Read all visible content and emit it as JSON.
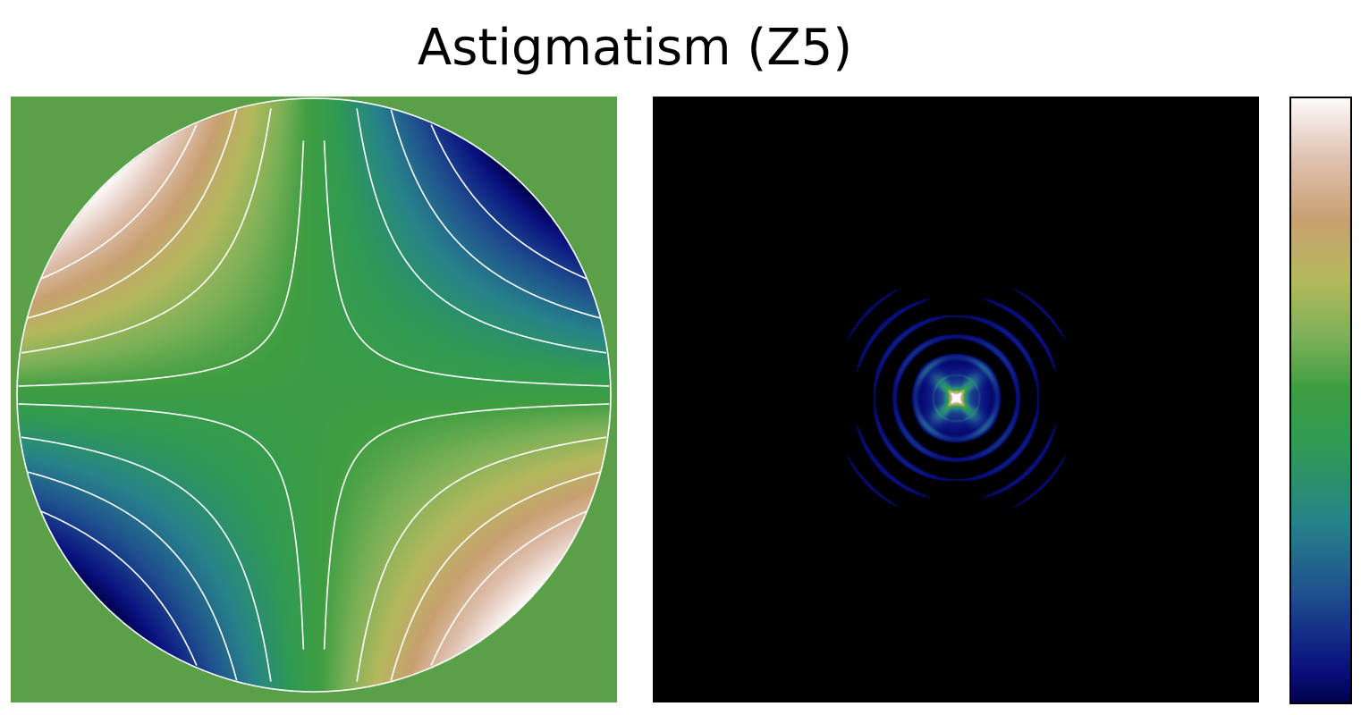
{
  "figure": {
    "title": "Astigmatism (Z5)"
  },
  "colormap": {
    "name": "gist_earth",
    "stops": [
      {
        "t": 0.0,
        "color": "#00004a"
      },
      {
        "t": 0.06,
        "color": "#0a1280"
      },
      {
        "t": 0.18,
        "color": "#1f4f8e"
      },
      {
        "t": 0.3,
        "color": "#27838a"
      },
      {
        "t": 0.42,
        "color": "#2e9a55"
      },
      {
        "t": 0.52,
        "color": "#3f9d41"
      },
      {
        "t": 0.6,
        "color": "#7ab057"
      },
      {
        "t": 0.7,
        "color": "#b5b85d"
      },
      {
        "t": 0.8,
        "color": "#c8a071"
      },
      {
        "t": 0.9,
        "color": "#e0c2b2"
      },
      {
        "t": 1.0,
        "color": "#fdfafb"
      }
    ]
  },
  "colors": {
    "outside_pupil": "#5aa048",
    "contour_line": "#ffffff",
    "psf_background": "#000000"
  }
}
